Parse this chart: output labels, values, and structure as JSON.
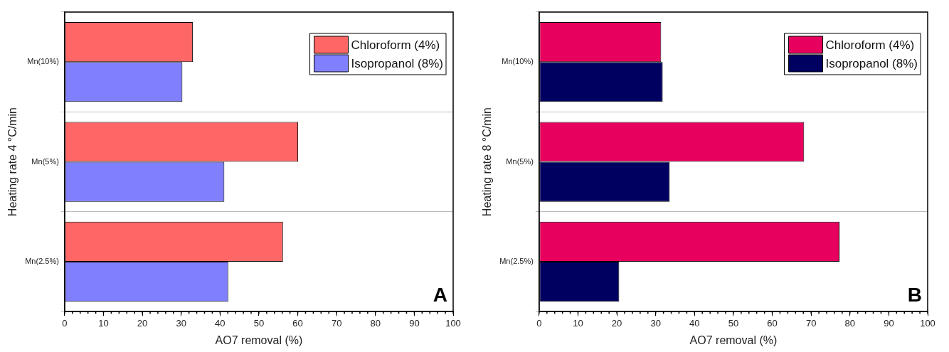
{
  "chart_data": [
    {
      "type": "bar",
      "orientation": "horizontal",
      "xlabel": "AO7 removal (%)",
      "ylabel": "Heating rate 4 °C/min",
      "categories": [
        "Mn(10%)",
        "Mn(5%)",
        "Mn(2.5%)"
      ],
      "series": [
        {
          "name": "Chloroform (4%)",
          "color": "#ff6666",
          "values": [
            33.0,
            60.1,
            56.2
          ]
        },
        {
          "name": "Isopropanol (8%)",
          "color": "#8080ff",
          "values": [
            30.3,
            41.1,
            42.1
          ]
        }
      ],
      "xlim": [
        0,
        100
      ],
      "xticks": [
        0,
        10,
        20,
        30,
        40,
        50,
        60,
        70,
        80,
        90,
        100
      ],
      "grid": "y",
      "legend": "top right",
      "annotations": [
        "A"
      ]
    },
    {
      "type": "bar",
      "orientation": "horizontal",
      "xlabel": "AO7 removal (%)",
      "ylabel": "Heating rate 8 °C/min",
      "categories": [
        "Mn(10%)",
        "Mn(5%)",
        "Mn(2.5%)"
      ],
      "series": [
        {
          "name": "Chloroform (4%)",
          "color": "#e8005f",
          "values": [
            31.4,
            68.2,
            77.3
          ]
        },
        {
          "name": "Isopropanol (8%)",
          "color": "#000060",
          "values": [
            31.8,
            33.6,
            20.6
          ]
        }
      ],
      "xlim": [
        0,
        100
      ],
      "xticks": [
        0,
        10,
        20,
        30,
        40,
        50,
        60,
        70,
        80,
        90,
        100
      ],
      "grid": "y",
      "legend": "top right",
      "annotations": [
        "B"
      ]
    }
  ]
}
